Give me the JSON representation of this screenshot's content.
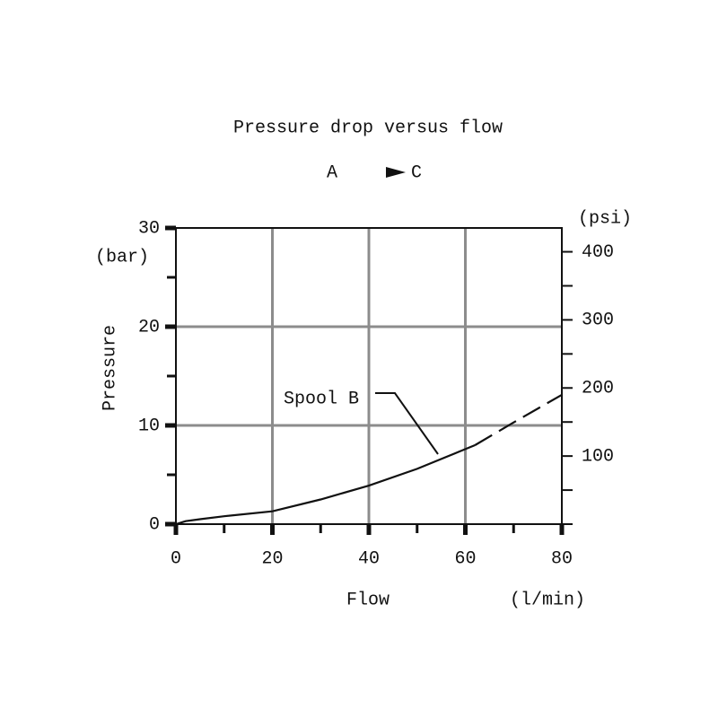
{
  "chart_data": {
    "type": "line",
    "title": "Pressure drop versus flow",
    "subtitle_from": "A",
    "subtitle_to": "C",
    "y_label": "Pressure",
    "y_unit": "(bar)",
    "y2_unit": "(psi)",
    "x_label": "Flow",
    "x_unit": "(l/min)",
    "x": [
      0,
      2,
      5,
      10,
      20,
      30,
      40,
      50,
      60,
      62,
      70,
      80
    ],
    "series": [
      {
        "name": "Spool B",
        "color": "#111111",
        "values": [
          0,
          0.3,
          0.5,
          0.8,
          1.3,
          2.5,
          3.9,
          5.6,
          7.6,
          8.0,
          10.3,
          13.1
        ],
        "dash_from_index": 9
      }
    ],
    "xlim": [
      0,
      80
    ],
    "xticks": [
      0,
      20,
      40,
      60,
      80
    ],
    "xminor": [
      10,
      30,
      50,
      70
    ],
    "ylim": [
      0,
      30
    ],
    "yticks": [
      0,
      10,
      20,
      30
    ],
    "yminor": [
      5,
      15,
      25
    ],
    "y2lim": [
      0,
      435
    ],
    "y2ticks": [
      100,
      200,
      300,
      400
    ],
    "y2minor": [
      0,
      50,
      150,
      250,
      350
    ],
    "grid": true,
    "grid_color": "#8c8c8c"
  }
}
